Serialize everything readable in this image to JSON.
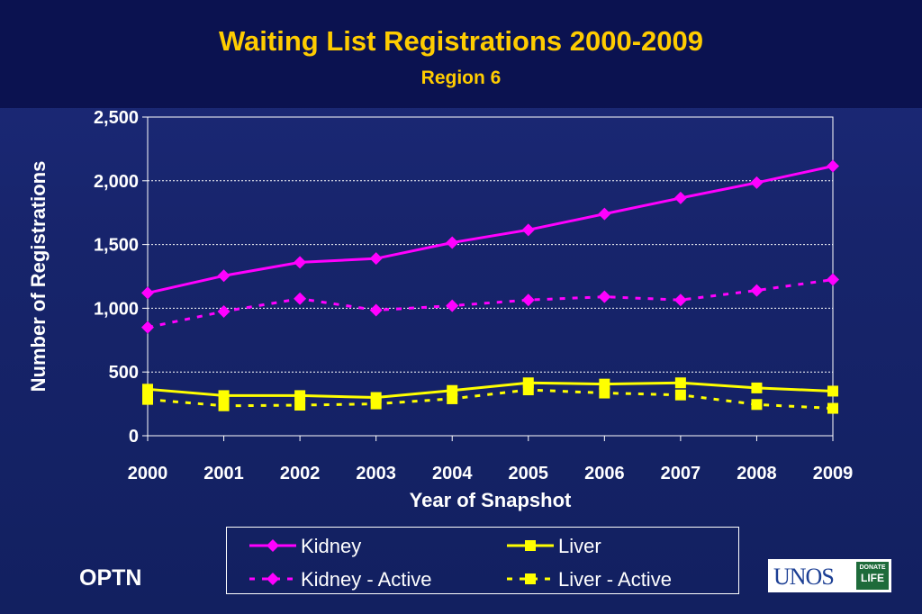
{
  "header": {
    "title": "Waiting List Registrations 2000-2009",
    "subtitle": "Region 6"
  },
  "footer": {
    "left_label": "OPTN",
    "logo_text": "UNOS",
    "logo_badge_top": "DONATE",
    "logo_badge_bottom": "LIFE"
  },
  "chart_data": {
    "type": "line",
    "title": "Waiting List Registrations 2000-2009",
    "subtitle": "Region 6",
    "xlabel": "Year of Snapshot",
    "ylabel": "Number of Registrations",
    "x": [
      "2000",
      "2001",
      "2002",
      "2003",
      "2004",
      "2005",
      "2006",
      "2007",
      "2008",
      "2009"
    ],
    "ylim": [
      0,
      2500
    ],
    "yticks": [
      0,
      500,
      1000,
      1500,
      2000,
      2500
    ],
    "ytick_labels": [
      "0",
      "500",
      "1,000",
      "1,500",
      "2,000",
      "2,500"
    ],
    "grid": "horizontal dotted",
    "legend_position": "bottom",
    "series": [
      {
        "name": "Kidney",
        "color": "#ff00ff",
        "marker": "diamond",
        "dash": "solid",
        "values": [
          1120,
          1255,
          1360,
          1390,
          1515,
          1615,
          1740,
          1865,
          1985,
          2115
        ]
      },
      {
        "name": "Kidney - Active",
        "color": "#ff00ff",
        "marker": "diamond",
        "dash": "dashed",
        "values": [
          850,
          975,
          1075,
          985,
          1020,
          1065,
          1090,
          1065,
          1140,
          1225
        ]
      },
      {
        "name": "Liver",
        "color": "#ffff00",
        "marker": "square",
        "dash": "solid",
        "values": [
          365,
          315,
          315,
          300,
          355,
          415,
          405,
          415,
          375,
          350
        ]
      },
      {
        "name": "Liver - Active",
        "color": "#ffff00",
        "marker": "square",
        "dash": "dashed",
        "values": [
          285,
          235,
          240,
          250,
          290,
          360,
          335,
          320,
          245,
          215
        ]
      }
    ]
  }
}
